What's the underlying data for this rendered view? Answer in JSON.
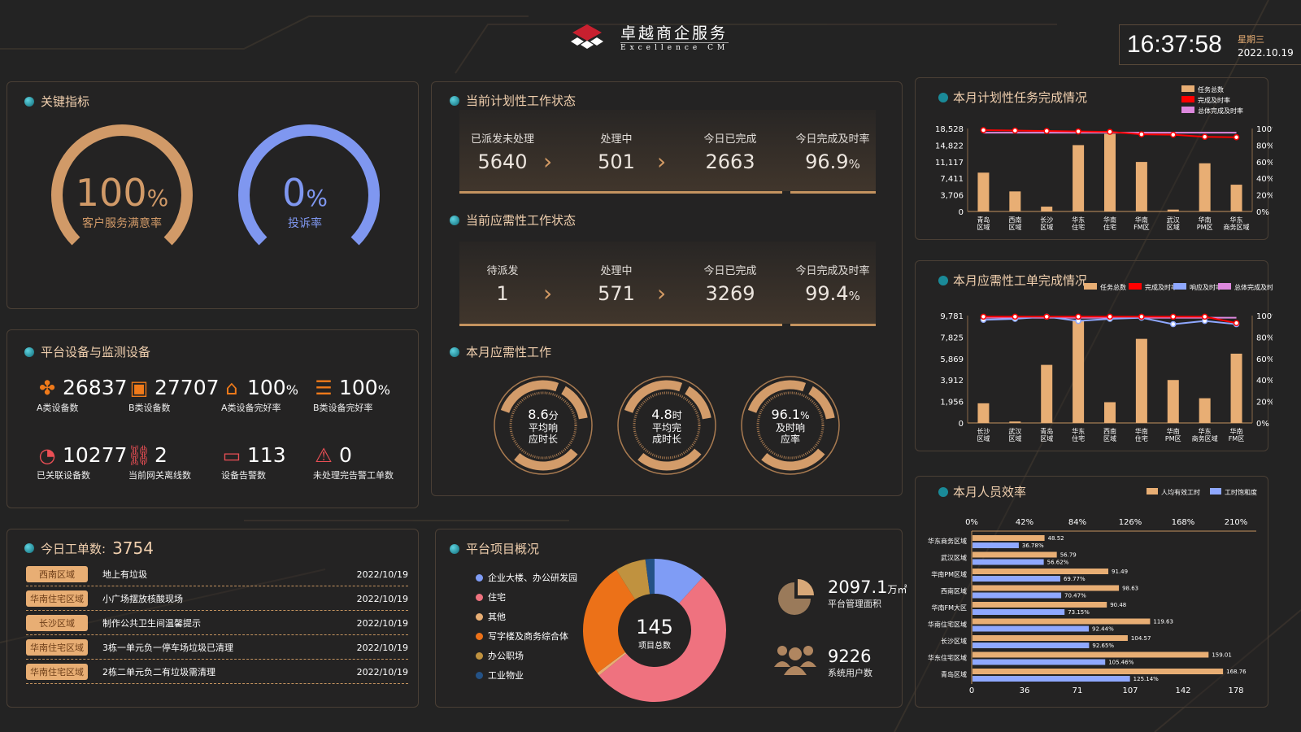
{
  "header": {
    "brand_cn": "卓越商企服务",
    "brand_en": "Excellence CM",
    "time": "16:37:58",
    "weekday": "星期三",
    "date": "2022.10.19",
    "brand_color": "#c8202f"
  },
  "key_metrics": {
    "title": "关键指标",
    "gauges": [
      {
        "value": "100",
        "unit": "%",
        "label": "客户服务满意率",
        "percent": 100,
        "color": "#d19a68"
      },
      {
        "value": "0",
        "unit": "%",
        "label": "投诉率",
        "percent": 0,
        "color": "#7f97f0"
      }
    ]
  },
  "planned": {
    "title": "当前计划性工作状态",
    "cells": [
      {
        "label": "已派发未处理",
        "value": "5640"
      },
      {
        "label": "处理中",
        "value": "501"
      },
      {
        "label": "今日已完成",
        "value": "2663"
      },
      {
        "label": "今日完成及时率",
        "value": "96.9",
        "unit": "%"
      }
    ]
  },
  "ondemand": {
    "title": "当前应需性工作状态",
    "cells": [
      {
        "label": "待派发",
        "value": "1"
      },
      {
        "label": "处理中",
        "value": "571"
      },
      {
        "label": "今日已完成",
        "value": "3269"
      },
      {
        "label": "今日完成及时率",
        "value": "99.4",
        "unit": "%"
      }
    ]
  },
  "monthly_ondemand": {
    "title": "本月应需性工作",
    "rings": [
      {
        "value": "8.6",
        "unit": "分",
        "label1": "平均响",
        "label2": "应时长"
      },
      {
        "value": "4.8",
        "unit": "时",
        "label1": "平均完",
        "label2": "成时长"
      },
      {
        "value": "96.1",
        "unit": "%",
        "label1": "及时响",
        "label2": "应率"
      }
    ]
  },
  "devices": {
    "title": "平台设备与监测设备",
    "items": [
      {
        "icon": "cluster-icon",
        "value": "26837",
        "label": "A类设备数",
        "color": "#f07a1a"
      },
      {
        "icon": "box-icon",
        "value": "27707",
        "label": "B类设备数",
        "color": "#f07a1a"
      },
      {
        "icon": "store-icon",
        "value": "100",
        "unit": "%",
        "label": "A类设备完好率",
        "color": "#f07a1a"
      },
      {
        "icon": "server-icon",
        "value": "100",
        "unit": "%",
        "label": "B类设备完好率",
        "color": "#f07a1a"
      },
      {
        "icon": "pie-icon",
        "value": "10277",
        "label": "已关联设备数",
        "color": "#ea4f55"
      },
      {
        "icon": "broken-link-icon",
        "value": "2",
        "label": "当前网关离线数",
        "color": "#ea4f55"
      },
      {
        "icon": "monitor-icon",
        "value": "113",
        "label": "设备告警数",
        "color": "#ea4f55"
      },
      {
        "icon": "alarm-icon",
        "value": "0",
        "label": "未处理完告警工单数",
        "color": "#ea4f55"
      }
    ]
  },
  "work_orders": {
    "title": "今日工单数:",
    "count": "3754",
    "rows": [
      {
        "region": "西南区域",
        "text": "地上有垃圾",
        "date": "2022/10/19"
      },
      {
        "region": "华南住宅区域",
        "text": "小广场摆放核酸现场",
        "date": "2022/10/19"
      },
      {
        "region": "长沙区域",
        "text": "制作公共卫生间温馨提示",
        "date": "2022/10/19"
      },
      {
        "region": "华南住宅区域",
        "text": "3栋一单元负一停车场垃圾已清理",
        "date": "2022/10/19"
      },
      {
        "region": "华南住宅区域",
        "text": "2栋二单元负二有垃圾需清理",
        "date": "2022/10/19"
      }
    ]
  },
  "projects": {
    "title": "平台项目概况",
    "total": "145",
    "total_label": "项目总数",
    "area_value": "2097.1",
    "area_unit": "万㎡",
    "area_label": "平台管理面积",
    "users_value": "9226",
    "users_label": "系统用户数"
  },
  "chart_data": [
    {
      "type": "bar",
      "title": "本月计划性任务完成情况",
      "categories": [
        "青岛区域",
        "西南区域",
        "长沙区域",
        "华东住宅",
        "华南住宅",
        "华南FM区",
        "武汉区域",
        "华南PM区",
        "华东商务区域"
      ],
      "y_ticks": [
        "18,528",
        "14,822",
        "11,117",
        "7,411",
        "3,706",
        "0"
      ],
      "ylim": [
        0,
        18528
      ],
      "y2_ticks": [
        "100%",
        "80%",
        "60%",
        "40%",
        "20%",
        "0%"
      ],
      "y2lim": [
        0,
        100
      ],
      "series": [
        {
          "name": "任务总数",
          "kind": "bar",
          "color": "#e8ae74",
          "values": [
            8670,
            4480,
            1080,
            14820,
            17330,
            11060,
            420,
            10760,
            5980
          ]
        },
        {
          "name": "完成及时率",
          "kind": "line",
          "color": "#ff0000",
          "values": [
            98,
            97.5,
            97,
            96.5,
            96,
            93,
            92.5,
            90,
            89.5
          ]
        },
        {
          "name": "总体完成及时率",
          "kind": "line",
          "color": "#dd88dd",
          "values": [
            95,
            95,
            95,
            95,
            95,
            95,
            95,
            95,
            95
          ]
        }
      ],
      "legend": "top-right"
    },
    {
      "type": "bar",
      "title": "本月应需性工单完成情况",
      "categories": [
        "长沙区域",
        "武汉区域",
        "青岛区域",
        "华东住宅",
        "西南区域",
        "华南住宅",
        "华南PM区",
        "华东商务区域",
        "华南FM区"
      ],
      "y_ticks": [
        "9,781",
        "7,825",
        "5,869",
        "3,912",
        "1,956",
        "0"
      ],
      "ylim": [
        0,
        9781
      ],
      "y2_ticks": [
        "100%",
        "80%",
        "60%",
        "40%",
        "20%",
        "0%"
      ],
      "y2lim": [
        0,
        100
      ],
      "series": [
        {
          "name": "任务总数",
          "kind": "bar",
          "color": "#e8ae74",
          "values": [
            1790,
            130,
            5290,
            9320,
            1890,
            7660,
            3910,
            2250,
            6310
          ]
        },
        {
          "name": "完成及时率",
          "kind": "line",
          "color": "#ff0000",
          "values": [
            99,
            99,
            99,
            99,
            99,
            99,
            99,
            99,
            93
          ]
        },
        {
          "name": "响应及时率",
          "kind": "line",
          "color": "#8fa8ff",
          "values": [
            96,
            97,
            99,
            95,
            97,
            98,
            92,
            95,
            92
          ]
        },
        {
          "name": "总体完成及时率",
          "kind": "line",
          "color": "#dd88dd",
          "values": [
            98,
            98,
            98,
            98,
            98,
            98,
            98,
            98,
            98
          ]
        }
      ],
      "legend": "top-right"
    },
    {
      "type": "bar",
      "orientation": "horizontal",
      "title": "本月人员效率",
      "categories": [
        "华东商务区域",
        "武汉区域",
        "华南PM区域",
        "西南区域",
        "华南FM大区",
        "华南住宅区域",
        "长沙区域",
        "华东住宅区域",
        "青岛区域"
      ],
      "top_ticks": [
        "0%",
        "42%",
        "84%",
        "126%",
        "168%",
        "210%"
      ],
      "top_lim": [
        0,
        210
      ],
      "bottom_ticks": [
        "0",
        "36",
        "71",
        "107",
        "142",
        "178"
      ],
      "bottom_lim": [
        0,
        178
      ],
      "series": [
        {
          "name": "人均有效工时",
          "color": "#e8ae74",
          "axis": "bottom",
          "values": [
            48.52,
            56.79,
            91.49,
            98.63,
            90.48,
            119.63,
            104.57,
            159.01,
            168.76
          ],
          "labels": [
            "48.52",
            "56.79",
            "91.49",
            "98.63",
            "90.48",
            "119.63",
            "104.57",
            "159.01",
            "168.76"
          ]
        },
        {
          "name": "工时饱和度",
          "color": "#8fa8ff",
          "axis": "top",
          "values": [
            36.78,
            56.62,
            69.77,
            70.47,
            73.15,
            92.44,
            92.65,
            105.46,
            125.14
          ],
          "labels": [
            "36.78%",
            "56.62%",
            "69.77%",
            "70.47%",
            "73.15%",
            "92.44%",
            "92.65%",
            "105.46%",
            "125.14%"
          ]
        }
      ],
      "legend": "top-right"
    },
    {
      "type": "pie",
      "title": "平台项目概况",
      "donut": true,
      "categories": [
        "企业大楼、办公研发园",
        "住宅",
        "其他",
        "写字楼及商务综合体",
        "办公职场",
        "工业物业"
      ],
      "values": [
        17,
        76,
        1,
        38,
        10,
        3
      ],
      "colors": [
        "#7f9cf5",
        "#ef727f",
        "#e8ae74",
        "#ec7118",
        "#c0923f",
        "#245286"
      ],
      "legend": "left"
    }
  ]
}
